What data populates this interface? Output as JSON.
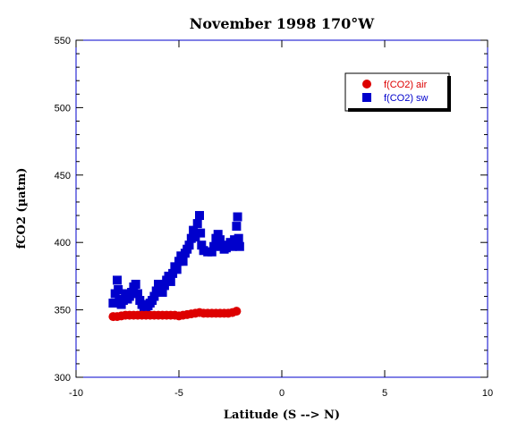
{
  "chart_data": {
    "type": "scatter",
    "title": "November 1998 170°W",
    "xlabel": "Latitude (S --> N)",
    "ylabel": "fCO2 (µatm)",
    "xlim": [
      -10,
      10
    ],
    "ylim": [
      300,
      550
    ],
    "xticks": [
      "-10",
      "-5",
      "0",
      "5",
      "10"
    ],
    "yticks": [
      "300",
      "350",
      "400",
      "450",
      "500",
      "550"
    ],
    "legend_position": "top-right",
    "grid": false,
    "series": [
      {
        "name": "f(CO2) air",
        "marker": "circle",
        "color": "#dd0000",
        "points": [
          [
            -8.2,
            345
          ],
          [
            -8.0,
            345
          ],
          [
            -7.8,
            345.5
          ],
          [
            -7.6,
            346
          ],
          [
            -7.4,
            346
          ],
          [
            -7.2,
            346
          ],
          [
            -7.0,
            346
          ],
          [
            -6.8,
            346
          ],
          [
            -6.6,
            346
          ],
          [
            -6.4,
            346
          ],
          [
            -6.2,
            346
          ],
          [
            -6.0,
            346
          ],
          [
            -5.8,
            346
          ],
          [
            -5.6,
            346
          ],
          [
            -5.4,
            346
          ],
          [
            -5.2,
            346
          ],
          [
            -5.0,
            345.5
          ],
          [
            -4.8,
            346
          ],
          [
            -4.6,
            346.5
          ],
          [
            -4.4,
            347
          ],
          [
            -4.2,
            347.5
          ],
          [
            -4.0,
            348
          ],
          [
            -3.8,
            347.5
          ],
          [
            -3.6,
            347.5
          ],
          [
            -3.4,
            347.5
          ],
          [
            -3.2,
            347.5
          ],
          [
            -3.0,
            347.5
          ],
          [
            -2.8,
            347.5
          ],
          [
            -2.6,
            347.5
          ],
          [
            -2.4,
            348
          ],
          [
            -2.2,
            349
          ]
        ]
      },
      {
        "name": "f(CO2) sw",
        "marker": "square",
        "color": "#0000cc",
        "points": [
          [
            -8.2,
            355
          ],
          [
            -8.1,
            362
          ],
          [
            -8.0,
            372
          ],
          [
            -7.95,
            365
          ],
          [
            -7.9,
            358
          ],
          [
            -7.8,
            354
          ],
          [
            -7.7,
            357
          ],
          [
            -7.6,
            362
          ],
          [
            -7.5,
            358
          ],
          [
            -7.4,
            360
          ],
          [
            -7.3,
            363
          ],
          [
            -7.2,
            367
          ],
          [
            -7.1,
            369
          ],
          [
            -7.0,
            362
          ],
          [
            -6.9,
            357
          ],
          [
            -6.8,
            354
          ],
          [
            -6.7,
            352
          ],
          [
            -6.6,
            352
          ],
          [
            -6.5,
            353
          ],
          [
            -6.4,
            355
          ],
          [
            -6.3,
            357
          ],
          [
            -6.2,
            360
          ],
          [
            -6.1,
            364
          ],
          [
            -6.0,
            369
          ],
          [
            -5.9,
            366
          ],
          [
            -5.8,
            363
          ],
          [
            -5.7,
            368
          ],
          [
            -5.6,
            372
          ],
          [
            -5.5,
            375
          ],
          [
            -5.4,
            371
          ],
          [
            -5.3,
            377
          ],
          [
            -5.2,
            382
          ],
          [
            -5.1,
            380
          ],
          [
            -5.0,
            386
          ],
          [
            -4.9,
            390
          ],
          [
            -4.8,
            386
          ],
          [
            -4.7,
            392
          ],
          [
            -4.6,
            395
          ],
          [
            -4.5,
            398
          ],
          [
            -4.4,
            403
          ],
          [
            -4.3,
            409
          ],
          [
            -4.2,
            404
          ],
          [
            -4.1,
            414
          ],
          [
            -4.0,
            420
          ],
          [
            -3.95,
            407
          ],
          [
            -3.9,
            398
          ],
          [
            -3.8,
            394
          ],
          [
            -3.6,
            393
          ],
          [
            -3.4,
            393
          ],
          [
            -3.3,
            397
          ],
          [
            -3.2,
            403
          ],
          [
            -3.1,
            406
          ],
          [
            -3.0,
            402
          ],
          [
            -2.9,
            397
          ],
          [
            -2.8,
            395
          ],
          [
            -2.7,
            396
          ],
          [
            -2.6,
            398
          ],
          [
            -2.5,
            400
          ],
          [
            -2.4,
            397
          ],
          [
            -2.3,
            402
          ],
          [
            -2.2,
            412
          ],
          [
            -2.15,
            419
          ],
          [
            -2.1,
            403
          ],
          [
            -2.05,
            397
          ]
        ]
      }
    ]
  }
}
